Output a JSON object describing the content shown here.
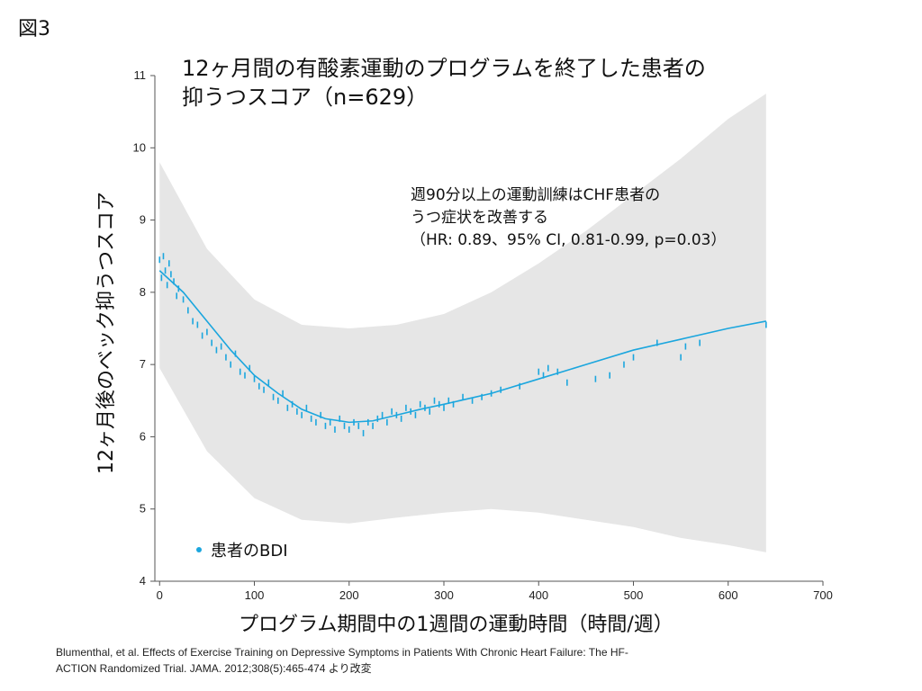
{
  "figure_label": "図3",
  "citation": {
    "line1": "Blumenthal, et al. Effects of Exercise Training on Depressive Symptoms in Patients With Chronic Heart Failure: The HF-",
    "line2": "ACTION Randomized Trial. JAMA. 2012;308(5):465-474 より改変"
  },
  "chart_data": {
    "type": "scatter",
    "title": [
      "12ヶ月間の有酸素運動のプログラムを終了した患者の",
      "抑うつスコア（n=629）"
    ],
    "xlabel": "プログラム期間中の1週間の運動時間（時間/週）",
    "ylabel": "12ヶ月後のベック抑うつスコア",
    "xlim": [
      -5,
      700
    ],
    "ylim": [
      4,
      11
    ],
    "x_ticks": [
      "0",
      "100",
      "200",
      "300",
      "400",
      "500",
      "600",
      "700"
    ],
    "y_ticks": [
      "4",
      "5",
      "6",
      "7",
      "8",
      "9",
      "10",
      "11"
    ],
    "legend": {
      "label": "患者のBDI",
      "placement": "lower-left"
    },
    "annotation": [
      "週90分以上の運動訓練はCHF患者の",
      "うつ症状を改善する",
      "（HR: 0.89、95% CI, 0.81-0.99, p=0.03）"
    ],
    "colors": {
      "points": "#1ba6de",
      "fit": "#1ba6de",
      "band": "#e6e6e6"
    },
    "fit_line": {
      "x": [
        0,
        25,
        50,
        75,
        100,
        125,
        150,
        175,
        200,
        225,
        250,
        275,
        300,
        350,
        400,
        450,
        500,
        550,
        600,
        640
      ],
      "y": [
        8.3,
        8.0,
        7.6,
        7.2,
        6.85,
        6.6,
        6.38,
        6.25,
        6.2,
        6.22,
        6.3,
        6.38,
        6.45,
        6.6,
        6.8,
        7.0,
        7.2,
        7.35,
        7.5,
        7.6
      ]
    },
    "band_upper": {
      "x": [
        0,
        50,
        100,
        150,
        200,
        250,
        300,
        350,
        400,
        450,
        500,
        550,
        600,
        640
      ],
      "y": [
        9.8,
        8.6,
        7.9,
        7.55,
        7.5,
        7.55,
        7.7,
        8.0,
        8.4,
        8.85,
        9.35,
        9.85,
        10.4,
        10.75
      ]
    },
    "band_lower": {
      "x": [
        0,
        50,
        100,
        150,
        200,
        250,
        300,
        350,
        400,
        450,
        500,
        550,
        600,
        640
      ],
      "y": [
        6.95,
        5.8,
        5.15,
        4.85,
        4.8,
        4.88,
        4.95,
        5.0,
        4.95,
        4.85,
        4.75,
        4.6,
        4.5,
        4.4
      ]
    },
    "points": {
      "x": [
        0,
        2,
        4,
        6,
        8,
        10,
        12,
        15,
        18,
        20,
        25,
        30,
        35,
        40,
        45,
        50,
        55,
        60,
        65,
        70,
        75,
        80,
        85,
        90,
        95,
        100,
        105,
        110,
        115,
        120,
        125,
        130,
        135,
        140,
        145,
        150,
        155,
        160,
        165,
        170,
        175,
        180,
        185,
        190,
        195,
        200,
        205,
        210,
        215,
        220,
        225,
        230,
        235,
        240,
        245,
        250,
        255,
        260,
        265,
        270,
        275,
        280,
        285,
        290,
        295,
        300,
        305,
        310,
        320,
        330,
        340,
        350,
        360,
        380,
        400,
        405,
        410,
        420,
        430,
        460,
        475,
        490,
        500,
        525,
        550,
        555,
        570,
        640
      ],
      "y": [
        8.45,
        8.2,
        8.5,
        8.3,
        8.1,
        8.4,
        8.25,
        8.15,
        7.95,
        8.05,
        7.9,
        7.75,
        7.6,
        7.55,
        7.4,
        7.45,
        7.3,
        7.2,
        7.25,
        7.1,
        7.0,
        7.15,
        6.9,
        6.85,
        6.95,
        6.8,
        6.7,
        6.65,
        6.75,
        6.55,
        6.5,
        6.6,
        6.4,
        6.45,
        6.35,
        6.3,
        6.4,
        6.25,
        6.2,
        6.3,
        6.15,
        6.2,
        6.1,
        6.25,
        6.15,
        6.1,
        6.2,
        6.15,
        6.05,
        6.2,
        6.15,
        6.25,
        6.3,
        6.2,
        6.35,
        6.3,
        6.25,
        6.4,
        6.35,
        6.3,
        6.45,
        6.4,
        6.35,
        6.5,
        6.45,
        6.4,
        6.5,
        6.45,
        6.55,
        6.5,
        6.55,
        6.6,
        6.65,
        6.7,
        6.9,
        6.85,
        6.95,
        6.9,
        6.75,
        6.8,
        6.85,
        7.0,
        7.1,
        7.3,
        7.1,
        7.25,
        7.3,
        7.55
      ]
    }
  }
}
